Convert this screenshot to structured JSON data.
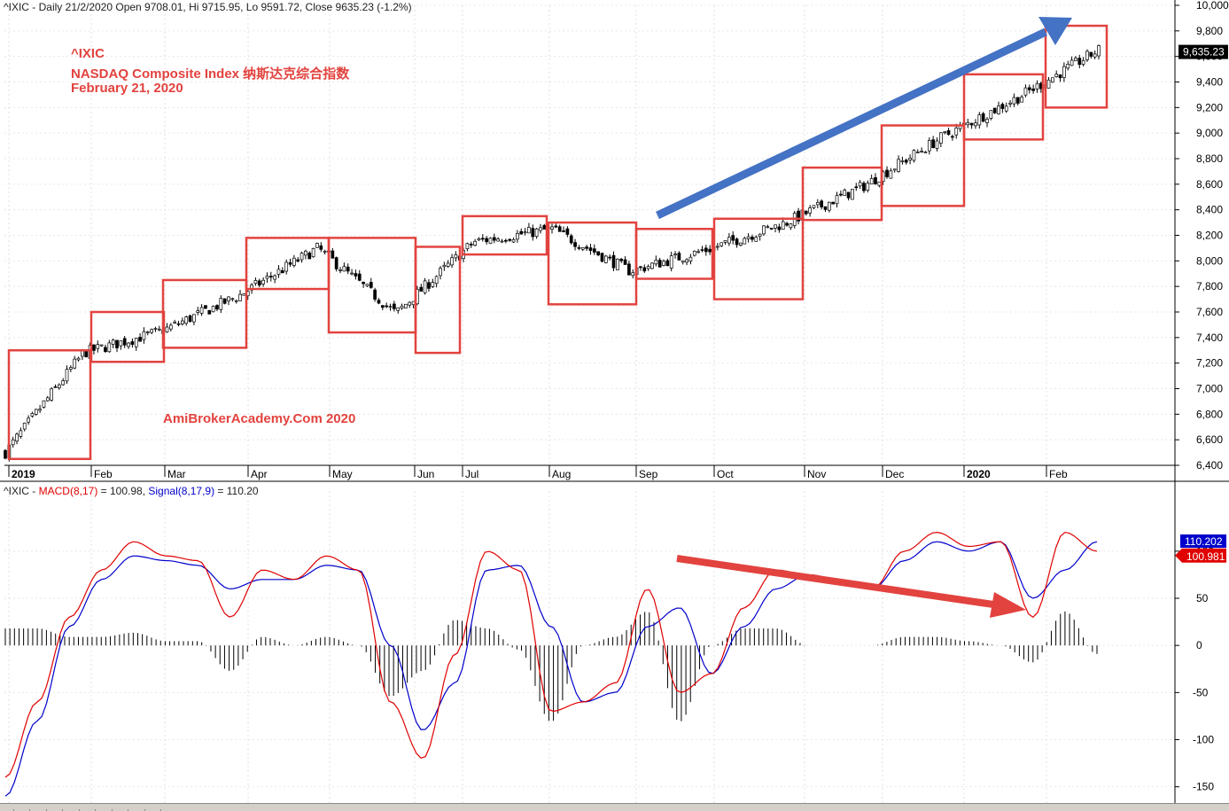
{
  "header": {
    "price_info": "^IXIC - Daily 21/2/2020 Open 9708.01, Hi 9715.95, Lo 9591.72, Close 9635.23 (-1.2%)",
    "macd_symbol": "^IXIC - ",
    "macd_label": "MACD(8,17)",
    "macd_value": " = 100.98, ",
    "signal_label": "Signal(8,17,9)",
    "signal_value": " = 110.20"
  },
  "annotation": {
    "line1": "^IXIC",
    "line2": "NASDAQ Composite Index   纳斯达克综合指数",
    "line3": "February 21, 2020",
    "watermark": "AmiBrokerAcademy.Com 2020"
  },
  "colors": {
    "accent_red": "#e2433f",
    "arrow_blue": "#4472c4",
    "macd_red": "#e00000",
    "signal_blue": "#0000cc"
  },
  "chart_data": [
    {
      "type": "candlestick",
      "ylim": [
        6400,
        10000
      ],
      "yticks": [
        6400,
        6600,
        6800,
        7000,
        7200,
        7400,
        7600,
        7800,
        8000,
        8200,
        8400,
        8600,
        8800,
        9000,
        9200,
        9400,
        9600,
        9800,
        10000
      ],
      "ytick_labels": [
        "6,400",
        "6,600",
        "6,800",
        "7,000",
        "7,200",
        "7,400",
        "7,600",
        "7,800",
        "8,000",
        "8,200",
        "8,400",
        "8,600",
        "8,800",
        "9,000",
        "9,200",
        "9,400",
        "9,600",
        "9,800",
        "10,000"
      ],
      "x_months": [
        {
          "label": "2019",
          "bold": true
        },
        {
          "label": "Feb"
        },
        {
          "label": "Mar"
        },
        {
          "label": "Apr"
        },
        {
          "label": "May"
        },
        {
          "label": "Jun"
        },
        {
          "label": "Jul"
        },
        {
          "label": "Aug"
        },
        {
          "label": "Sep"
        },
        {
          "label": "Oct"
        },
        {
          "label": "Nov"
        },
        {
          "label": "Dec"
        },
        {
          "label": "2020",
          "bold": true
        },
        {
          "label": "Feb"
        }
      ],
      "monthly_close": [
        6500,
        7280,
        7450,
        7730,
        8100,
        7590,
        8150,
        8250,
        7920,
        8090,
        8300,
        8590,
        8970,
        9290,
        9650
      ],
      "monthly_boxes": [
        {
          "month": "Jan 2019",
          "low": 6450,
          "high": 7300
        },
        {
          "month": "Feb 2019",
          "low": 7210,
          "high": 7600
        },
        {
          "month": "Mar 2019",
          "low": 7320,
          "high": 7850
        },
        {
          "month": "Apr 2019",
          "low": 7780,
          "high": 8180
        },
        {
          "month": "May 2019",
          "low": 7440,
          "high": 8180
        },
        {
          "month": "Jun 2019",
          "low": 7280,
          "high": 8110
        },
        {
          "month": "Jul 2019",
          "low": 8050,
          "high": 8350
        },
        {
          "month": "Aug 2019",
          "low": 7660,
          "high": 8300
        },
        {
          "month": "Sep 2019",
          "low": 7860,
          "high": 8250
        },
        {
          "month": "Oct 2019",
          "low": 7700,
          "high": 8330
        },
        {
          "month": "Nov 2019",
          "low": 8320,
          "high": 8730
        },
        {
          "month": "Dec 2019",
          "low": 8430,
          "high": 9060
        },
        {
          "month": "Jan 2020",
          "low": 8950,
          "high": 9460
        },
        {
          "month": "Feb 2020",
          "low": 9200,
          "high": 9840
        }
      ],
      "last_close_label": "9,635.23",
      "last_close": 9635.23
    },
    {
      "type": "line",
      "ylim": [
        -155,
        145
      ],
      "yticks": [
        -150,
        -100,
        -50,
        0,
        50,
        100
      ],
      "ytick_labels": [
        "-150",
        "-100",
        "-50",
        "0",
        "50",
        "100"
      ],
      "series": [
        {
          "name": "MACD(8,17)",
          "color": "#e00000",
          "values": [
            -140,
            -60,
            30,
            80,
            110,
            95,
            90,
            30,
            80,
            70,
            95,
            80,
            -60,
            -120,
            -10,
            100,
            80,
            -70,
            -60,
            -40,
            60,
            -50,
            -30,
            40,
            80,
            75,
            70,
            60,
            100,
            120,
            105,
            110,
            30,
            120,
            100
          ]
        },
        {
          "name": "Signal(8,17,9)",
          "color": "#0000cc",
          "values": [
            -160,
            -80,
            20,
            70,
            95,
            90,
            85,
            60,
            70,
            70,
            85,
            80,
            0,
            -90,
            -40,
            80,
            85,
            20,
            -60,
            -50,
            20,
            40,
            -30,
            20,
            60,
            75,
            70,
            60,
            90,
            110,
            100,
            110,
            50,
            80,
            110
          ]
        }
      ],
      "last_macd_label": "100.981",
      "last_signal_label": "110.202"
    }
  ]
}
